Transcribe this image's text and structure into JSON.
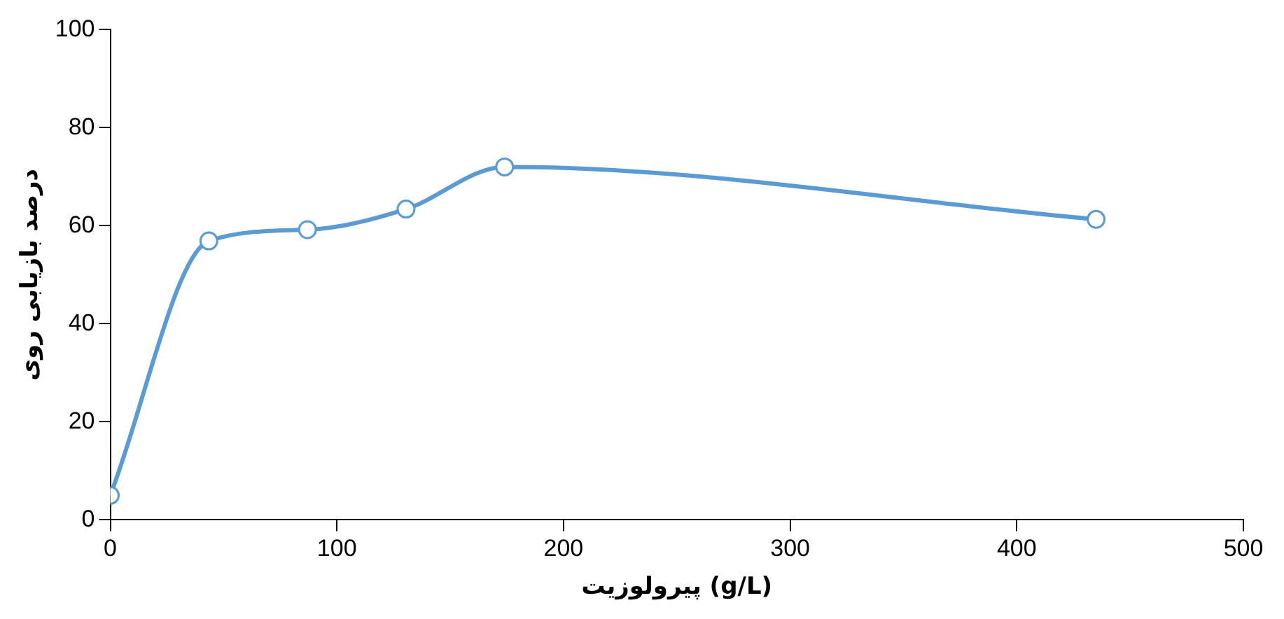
{
  "chart_data": {
    "type": "line",
    "xlabel": "پیرولوزیت (g/L)",
    "ylabel": "درصد بازیابی روی",
    "x": [
      0,
      43.5,
      87,
      130.5,
      174,
      435
    ],
    "series": [
      {
        "color": "#5b9bd5",
        "values": [
          5,
          56.9,
          59.2,
          63.4,
          72,
          61.3
        ]
      }
    ],
    "xlim": [
      0,
      500
    ],
    "xticks": [
      0,
      100,
      200,
      300,
      400,
      500
    ],
    "ylim": [
      0,
      100
    ],
    "yticks": [
      0,
      20,
      40,
      60,
      80,
      100
    ],
    "grid": false,
    "legend": false,
    "marker": "circle",
    "line_style": "solid"
  }
}
